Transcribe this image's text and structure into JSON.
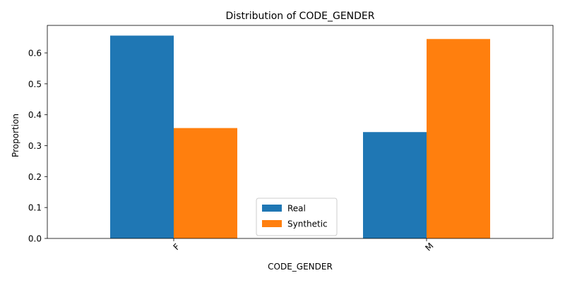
{
  "chart_data": {
    "type": "bar",
    "title": "Distribution of CODE_GENDER",
    "xlabel": "CODE_GENDER",
    "ylabel": "Proportion",
    "categories": [
      "F",
      "M"
    ],
    "series": [
      {
        "name": "Real",
        "values": [
          0.656,
          0.344
        ],
        "color": "#1f77b4"
      },
      {
        "name": "Synthetic",
        "values": [
          0.357,
          0.645
        ],
        "color": "#ff7f0e"
      }
    ],
    "ylim": [
      0,
      0.689
    ],
    "yticks": [
      0.0,
      0.1,
      0.2,
      0.3,
      0.4,
      0.5,
      0.6
    ],
    "ytick_labels": [
      "0.0",
      "0.1",
      "0.2",
      "0.3",
      "0.4",
      "0.5",
      "0.6"
    ],
    "xtick_rotation_deg": 45,
    "grid": false,
    "legend_position": "lower center"
  }
}
